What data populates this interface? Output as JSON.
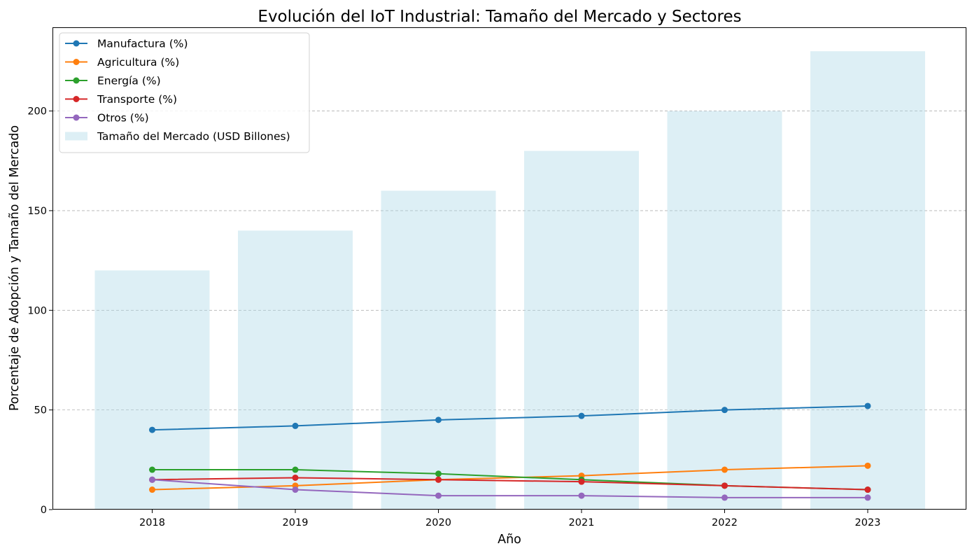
{
  "chart_data": {
    "type": "bar+line",
    "title": "Evolución del IoT Industrial: Tamaño del Mercado y Sectores",
    "xlabel": "Año",
    "ylabel": "Porcentaje de Adopción y Tamaño del Mercado",
    "categories": [
      "2018",
      "2019",
      "2020",
      "2021",
      "2022",
      "2023"
    ],
    "ylim": [
      0,
      242
    ],
    "yticks": [
      0,
      50,
      100,
      150,
      200
    ],
    "grid": "y-dashed",
    "legend_position": "top-left",
    "bars": {
      "name": "Tamaño del Mercado (USD Billones)",
      "values": [
        120,
        140,
        160,
        180,
        200,
        230
      ],
      "color": "#add8e6"
    },
    "series": [
      {
        "name": "Manufactura (%)",
        "values": [
          40,
          42,
          45,
          47,
          50,
          52
        ],
        "color": "#1f77b4"
      },
      {
        "name": "Agricultura (%)",
        "values": [
          10,
          12,
          15,
          17,
          20,
          22
        ],
        "color": "#ff7f0e"
      },
      {
        "name": "Energía (%)",
        "values": [
          20,
          20,
          18,
          15,
          12,
          10
        ],
        "color": "#2ca02c"
      },
      {
        "name": "Transporte (%)",
        "values": [
          15,
          16,
          15,
          14,
          12,
          10
        ],
        "color": "#d62728"
      },
      {
        "name": "Otros (%)",
        "values": [
          15,
          10,
          7,
          7,
          6,
          6
        ],
        "color": "#9467bd"
      }
    ]
  }
}
